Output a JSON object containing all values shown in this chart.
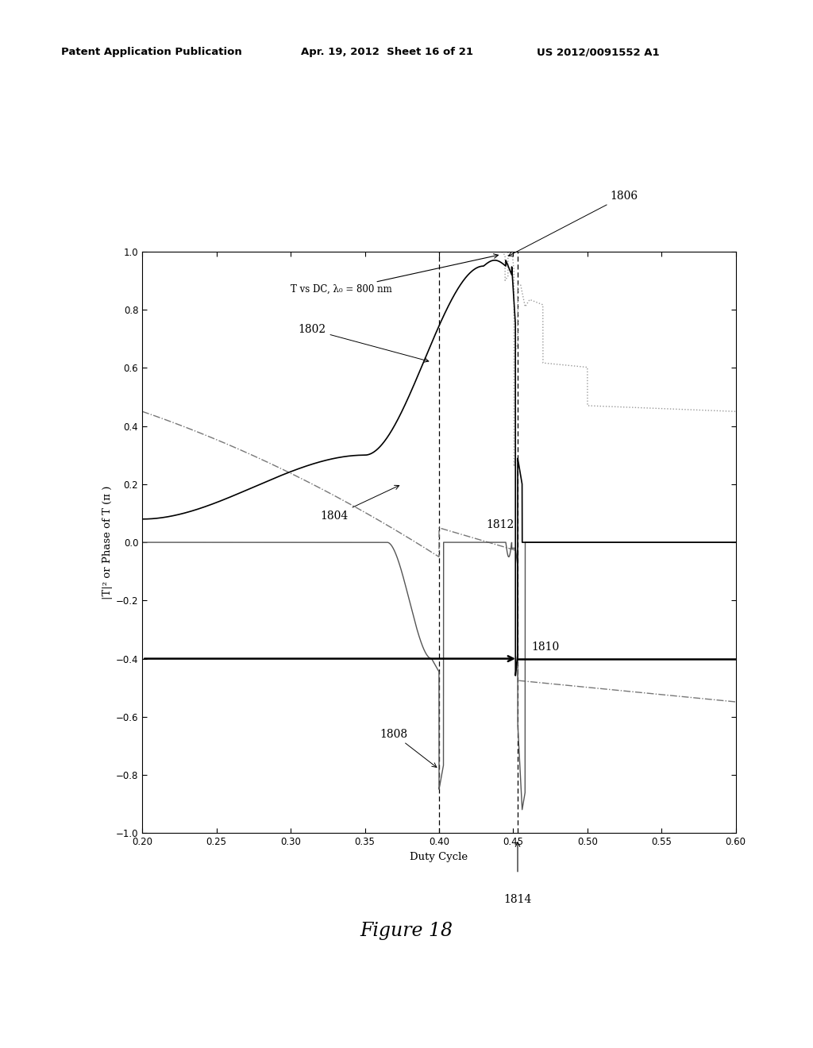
{
  "header_left": "Patent Application Publication",
  "header_mid": "Apr. 19, 2012  Sheet 16 of 21",
  "header_right": "US 2012/0091552 A1",
  "figure_caption": "Figure 18",
  "plot_annotation": "T vs DC, λ₀ = 800 nm",
  "xlabel": "Duty Cycle",
  "ylabel": "|T|² or Phase of T (π )",
  "xlim": [
    0.2,
    0.6
  ],
  "ylim": [
    -1.0,
    1.0
  ],
  "xticks": [
    0.2,
    0.25,
    0.3,
    0.35,
    0.4,
    0.45,
    0.5,
    0.55,
    0.6
  ],
  "yticks": [
    -1.0,
    -0.8,
    -0.6,
    -0.4,
    -0.2,
    0.0,
    0.2,
    0.4,
    0.6,
    0.8,
    1.0
  ],
  "vline1_x": 0.4,
  "vline2_x": 0.453,
  "hline_y": -0.4,
  "label_1802": "1802",
  "label_1804": "1804",
  "label_1806": "1806",
  "label_1808": "1808",
  "label_1810": "1810",
  "label_1812": "1812",
  "label_1814": "1814",
  "bg_color": "#ffffff",
  "line_color": "#000000",
  "gray_color": "#777777"
}
